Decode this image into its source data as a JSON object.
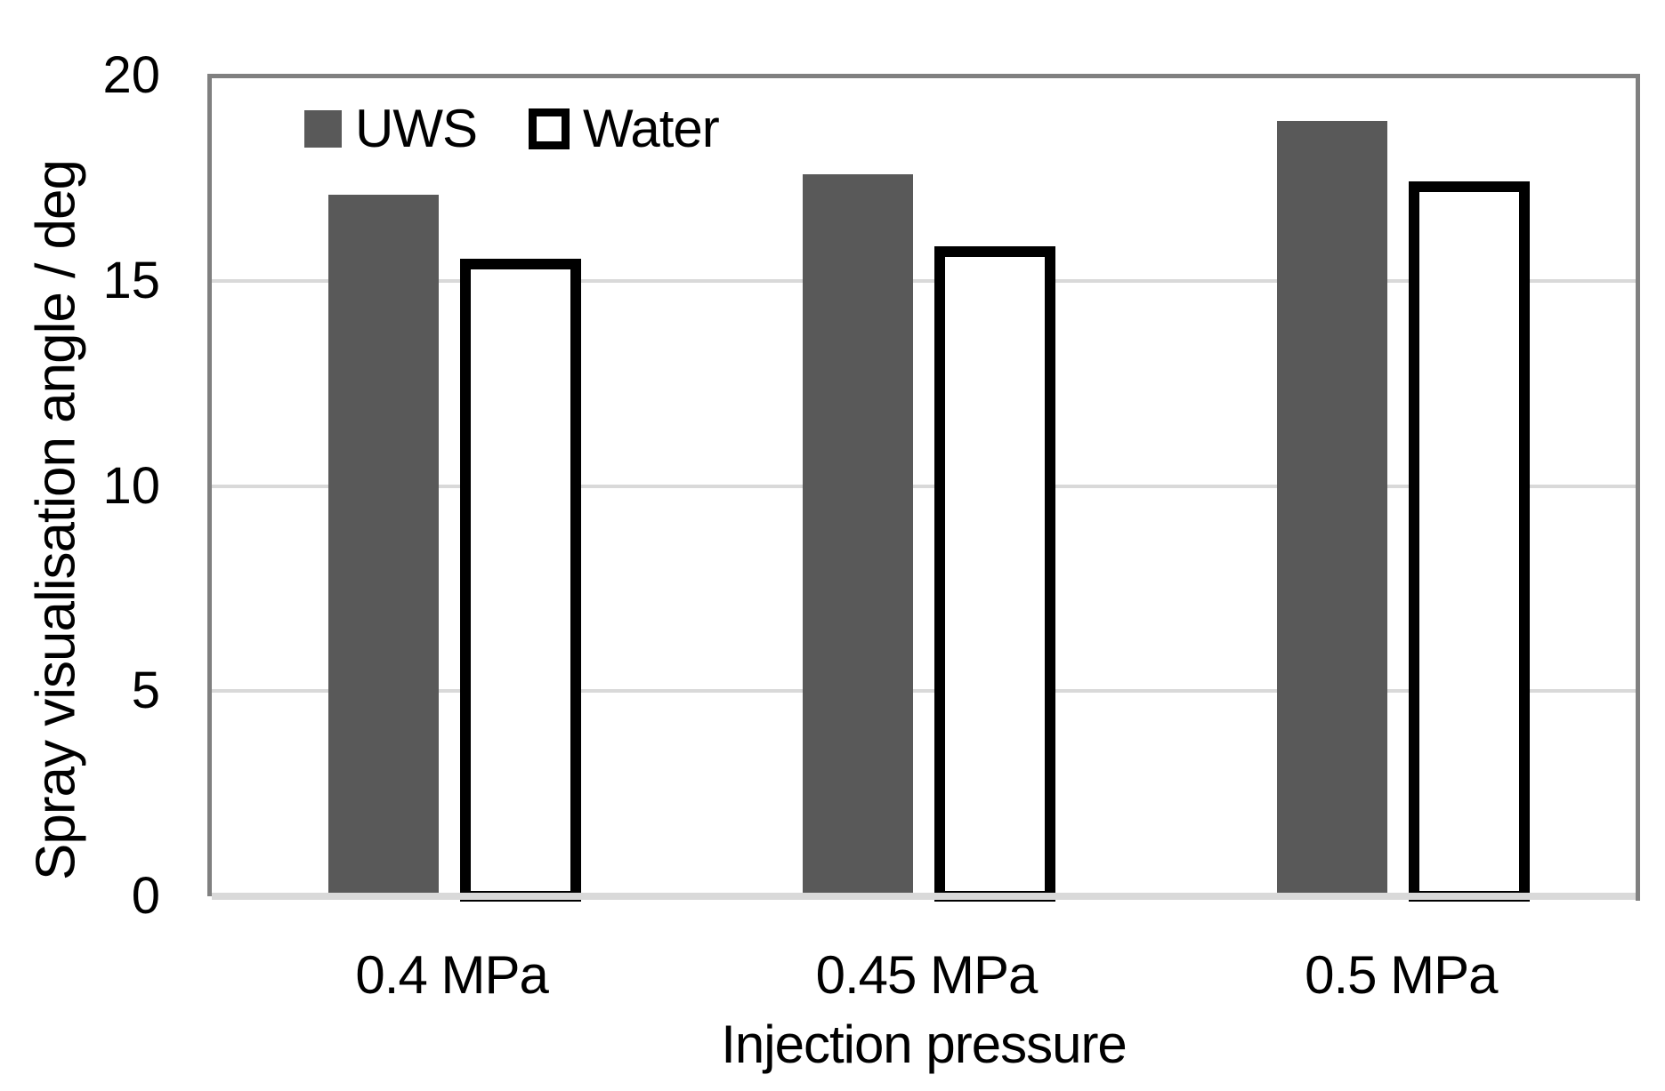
{
  "chart_data": {
    "type": "bar",
    "title": "",
    "categories": [
      "0.4 MPa",
      "0.45 MPa",
      "0.5 MPa"
    ],
    "series": [
      {
        "name": "UWS",
        "values": [
          17.1,
          17.6,
          18.9
        ]
      },
      {
        "name": "Water",
        "values": [
          15.4,
          15.7,
          17.3
        ]
      }
    ],
    "xlabel": "Injection pressure",
    "ylabel": "Spray visualisation angle / deg",
    "ylim": [
      0,
      20
    ],
    "yticks": [
      0,
      5,
      10,
      15,
      20
    ],
    "grid": "horizontal gridlines at 5, 10, 15",
    "legend_position": "top-left inside plot",
    "colors": {
      "uws_fill": "#595959",
      "water_fill": "#ffffff",
      "water_border": "#000000",
      "plot_border": "#808080",
      "gridline": "#d9d9d9",
      "zero_line": "#d9d9d9",
      "text": "#000000",
      "background": "#ffffff"
    }
  }
}
